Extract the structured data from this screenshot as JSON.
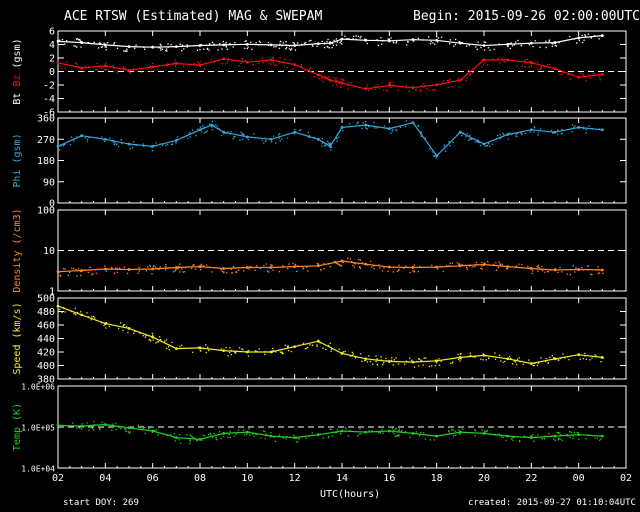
{
  "header": {
    "title": "ACE RTSW (Estimated) MAG & SWEPAM",
    "begin": "Begin: 2015-09-26 02:00:00UTC"
  },
  "footer": {
    "xlabel": "UTC(hours)",
    "start": "start DOY: 269",
    "created": "created: 2015-09-27 01:10:04UTC"
  },
  "colors": {
    "background": "#000000",
    "axes": "#ffffff",
    "bt": "#ffffff",
    "bz": "#ee1111",
    "phi": "#33aadd",
    "density": "#ff8822",
    "speed": "#eeee22",
    "temp": "#22cc22"
  },
  "chart_data": [
    {
      "type": "scatter",
      "ylabel_parts": [
        "Bt",
        "Bz",
        "(gsm)"
      ],
      "ylim": [
        -7,
        7
      ],
      "yticks": [
        "6",
        "4",
        "2",
        "0",
        "-2",
        "-4",
        "-6"
      ],
      "reference_line": 0,
      "x": [
        2,
        3,
        4,
        5,
        6,
        7,
        8,
        9,
        10,
        11,
        12,
        13,
        13.5,
        14,
        15,
        16,
        17,
        18,
        19,
        20,
        21,
        22,
        23,
        24,
        25
      ],
      "series": [
        {
          "values": [
            5.2,
            5.0,
            4.6,
            4.3,
            4.2,
            4.3,
            4.5,
            4.6,
            4.7,
            4.6,
            4.5,
            4.8,
            4.9,
            5.6,
            5.4,
            5.3,
            5.5,
            5.4,
            4.9,
            4.5,
            4.7,
            4.9,
            5.0,
            5.8,
            6.2
          ]
        },
        {
          "values": [
            1.5,
            0.6,
            1.0,
            0.2,
            0.8,
            1.4,
            1.1,
            2.2,
            1.6,
            2.0,
            1.2,
            -0.6,
            -1.5,
            -2.0,
            -3.0,
            -2.4,
            -2.8,
            -2.3,
            -1.5,
            2.0,
            2.0,
            1.5,
            0.5,
            -1.0,
            -0.5
          ]
        }
      ]
    },
    {
      "type": "scatter",
      "ylabel": "Phi (gsm)",
      "ylim": [
        0,
        360
      ],
      "yticks": [
        "360",
        "270",
        "180",
        "90",
        "0"
      ],
      "x": [
        2,
        3,
        4,
        5,
        6,
        7,
        8,
        8.5,
        9,
        10,
        11,
        12,
        13,
        13.5,
        14,
        15,
        16,
        17,
        18,
        19,
        20,
        21,
        22,
        23,
        24,
        25
      ],
      "series": [
        {
          "values": [
            240,
            285,
            270,
            250,
            240,
            265,
            310,
            330,
            300,
            280,
            270,
            300,
            270,
            240,
            320,
            330,
            315,
            340,
            200,
            300,
            250,
            290,
            310,
            300,
            320,
            310
          ]
        }
      ]
    },
    {
      "type": "scatter",
      "ylabel": "Density (/cm3)",
      "ylim": [
        1,
        100
      ],
      "yscale": "log",
      "yticks": [
        "100",
        "10",
        "1"
      ],
      "reference_line": 10,
      "x": [
        2,
        3,
        4,
        5,
        6,
        7,
        8,
        9,
        10,
        11,
        12,
        13,
        14,
        15,
        16,
        17,
        18,
        19,
        20,
        21,
        22,
        23,
        24,
        25
      ],
      "series": [
        {
          "values": [
            3.0,
            3.2,
            3.5,
            3.4,
            3.5,
            3.8,
            4.0,
            3.6,
            3.8,
            3.8,
            4.0,
            4.2,
            5.5,
            4.6,
            3.9,
            3.8,
            3.9,
            4.2,
            4.5,
            4.0,
            3.6,
            3.3,
            3.4,
            3.3
          ]
        }
      ]
    },
    {
      "type": "scatter",
      "ylabel": "Speed (km/s)",
      "ylim": [
        380,
        500
      ],
      "yticks": [
        "500",
        "480",
        "460",
        "440",
        "420",
        "400",
        "380"
      ],
      "x": [
        2,
        3,
        4,
        5,
        6,
        7,
        8,
        9,
        10,
        11,
        12,
        13,
        14,
        15,
        16,
        17,
        18,
        19,
        20,
        21,
        22,
        23,
        24,
        25
      ],
      "series": [
        {
          "values": [
            488,
            475,
            462,
            455,
            442,
            425,
            426,
            422,
            420,
            420,
            428,
            436,
            418,
            410,
            406,
            405,
            407,
            412,
            415,
            410,
            403,
            410,
            416,
            412
          ]
        }
      ]
    },
    {
      "type": "scatter",
      "ylabel": "Temp (K)",
      "ylim": [
        10000,
        1000000
      ],
      "yscale": "log",
      "yticks": [
        "1.0E+06",
        "1.0E+05",
        "1.0E+04"
      ],
      "reference_line": 100000,
      "x": [
        2,
        3,
        4,
        5,
        6,
        7,
        8,
        9,
        10,
        11,
        12,
        13,
        14,
        15,
        16,
        17,
        18,
        19,
        20,
        21,
        22,
        23,
        24,
        25
      ],
      "series": [
        {
          "values": [
            110000,
            105000,
            115000,
            95000,
            80000,
            55000,
            50000,
            70000,
            75000,
            60000,
            55000,
            65000,
            80000,
            75000,
            80000,
            70000,
            60000,
            75000,
            70000,
            60000,
            55000,
            60000,
            65000,
            60000
          ]
        }
      ]
    }
  ],
  "x_axis": {
    "range": [
      2,
      26
    ],
    "ticks": [
      "02",
      "04",
      "06",
      "08",
      "10",
      "12",
      "14",
      "16",
      "18",
      "20",
      "22",
      "00",
      "02"
    ]
  }
}
